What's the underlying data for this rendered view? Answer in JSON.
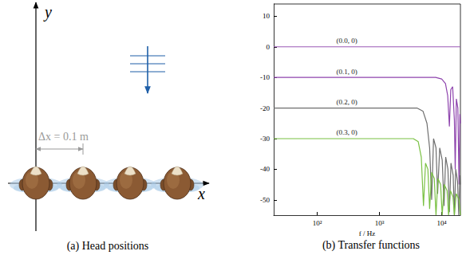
{
  "diagram": {
    "caption": "(a) Head positions",
    "x_axis_label": "x",
    "y_axis_label": "y",
    "spacing_label": "Δx = 0.1 m",
    "head_positions": [
      0,
      0.1,
      0.2,
      0.3
    ]
  },
  "chart_data": {
    "type": "line",
    "caption": "(b) Transfer functions",
    "xlabel": "f / Hz",
    "log": "x",
    "grid": false,
    "xlim": [
      20,
      20000
    ],
    "xticks": [
      {
        "value": 100,
        "label": "10²"
      },
      {
        "value": 1000,
        "label": "10³"
      },
      {
        "value": 10000,
        "label": "10⁴"
      }
    ],
    "ylim": [
      -55,
      14
    ],
    "yticks": [
      -50,
      -40,
      -30,
      -20,
      -10,
      0,
      10
    ],
    "series": [
      {
        "name": "(0.0, 0)",
        "color": "#9b59b6",
        "x": [
          20,
          300,
          20000
        ],
        "values": [
          0,
          0,
          0
        ]
      },
      {
        "name": "(0.1, 0)",
        "color": "#8e44ad",
        "x": [
          20,
          300,
          8000,
          10000,
          11500,
          12500,
          13300,
          14000,
          15000,
          16000,
          16500,
          17200,
          18200,
          19000,
          19600,
          20000
        ],
        "values": [
          -10,
          -10,
          -10,
          -10.5,
          -12,
          -16,
          -26,
          -14,
          -13,
          -24,
          -40,
          -17,
          -20,
          -45,
          -22,
          -25
        ]
      },
      {
        "name": "(0.2, 0)",
        "color": "#6e6e6e",
        "x": [
          20,
          300,
          4000,
          5000,
          5800,
          6400,
          6900,
          7400,
          8100,
          8600,
          9300,
          10200,
          10900,
          11600,
          12600,
          13300,
          14100,
          15300,
          16000,
          16800,
          18000,
          18800,
          19600,
          20000
        ],
        "values": [
          -20,
          -20,
          -20,
          -21,
          -25,
          -33,
          -50,
          -30,
          -33,
          -48,
          -33,
          -37,
          -52,
          -36,
          -40,
          -54,
          -38,
          -42,
          -55,
          -40,
          -44,
          -55,
          -42,
          -45
        ]
      },
      {
        "name": "(0.3, 0)",
        "color": "#7ac143",
        "x": [
          20,
          300,
          3500,
          4200,
          4700,
          5100,
          5500,
          6000,
          6400,
          6900,
          7600,
          8100,
          8700,
          9600,
          10200,
          11000,
          12200,
          12900,
          13800,
          15200,
          16000,
          17100,
          19000,
          20000
        ],
        "values": [
          -30,
          -30,
          -30,
          -31,
          -36,
          -52,
          -38,
          -40,
          -53,
          -41,
          -43,
          -55,
          -43,
          -45,
          -55,
          -45,
          -47,
          -55,
          -47,
          -49,
          -55,
          -48,
          -50,
          -55
        ]
      }
    ]
  }
}
